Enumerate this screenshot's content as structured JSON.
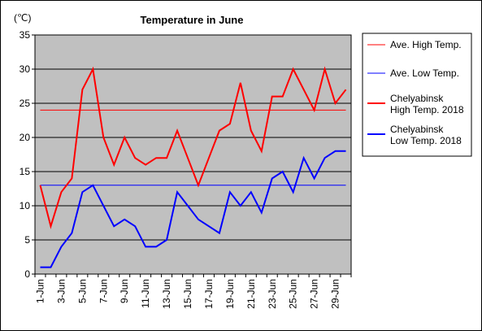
{
  "chart_data": {
    "type": "line",
    "title": "Temperature in June",
    "ylabel": "(℃)",
    "xlabel": "",
    "ylim": [
      0,
      35
    ],
    "yticks": [
      "0",
      "5",
      "10",
      "15",
      "20",
      "25",
      "30",
      "35"
    ],
    "x_tick_labels": [
      "1-Jun",
      "3-Jun",
      "5-Jun",
      "7-Jun",
      "9-Jun",
      "11-Jun",
      "13-Jun",
      "15-Jun",
      "17-Jun",
      "19-Jun",
      "21-Jun",
      "23-Jun",
      "25-Jun",
      "27-Jun",
      "29-Jun"
    ],
    "categories": [
      "1-Jun",
      "2-Jun",
      "3-Jun",
      "4-Jun",
      "5-Jun",
      "6-Jun",
      "7-Jun",
      "8-Jun",
      "9-Jun",
      "10-Jun",
      "11-Jun",
      "12-Jun",
      "13-Jun",
      "14-Jun",
      "15-Jun",
      "16-Jun",
      "17-Jun",
      "18-Jun",
      "19-Jun",
      "20-Jun",
      "21-Jun",
      "22-Jun",
      "23-Jun",
      "24-Jun",
      "25-Jun",
      "26-Jun",
      "27-Jun",
      "28-Jun",
      "29-Jun",
      "30-Jun"
    ],
    "grid": true,
    "legend_position": "right",
    "series": [
      {
        "name": "Ave. High Temp.",
        "name_lines": [
          "Ave. High Temp."
        ],
        "color": "#ff0000",
        "values": [
          24,
          24,
          24,
          24,
          24,
          24,
          24,
          24,
          24,
          24,
          24,
          24,
          24,
          24,
          24,
          24,
          24,
          24,
          24,
          24,
          24,
          24,
          24,
          24,
          24,
          24,
          24,
          24,
          24,
          24
        ]
      },
      {
        "name": "Ave. Low Temp.",
        "name_lines": [
          "Ave. Low Temp."
        ],
        "color": "#0000ff",
        "values": [
          13,
          13,
          13,
          13,
          13,
          13,
          13,
          13,
          13,
          13,
          13,
          13,
          13,
          13,
          13,
          13,
          13,
          13,
          13,
          13,
          13,
          13,
          13,
          13,
          13,
          13,
          13,
          13,
          13,
          13
        ]
      },
      {
        "name": "Chelyabinsk High Temp. 2018",
        "name_lines": [
          "Chelyabinsk",
          "High Temp. 2018"
        ],
        "color": "#ff0000",
        "values": [
          13,
          7,
          12,
          14,
          27,
          30,
          20,
          16,
          20,
          17,
          16,
          17,
          17,
          21,
          17,
          13,
          17,
          21,
          22,
          28,
          21,
          18,
          26,
          26,
          30,
          27,
          24,
          30,
          25,
          27
        ]
      },
      {
        "name": "Chelyabinsk Low Temp. 2018",
        "name_lines": [
          "Chelyabinsk",
          "Low Temp. 2018"
        ],
        "color": "#0000ff",
        "values": [
          1,
          1,
          4,
          6,
          12,
          13,
          10,
          7,
          8,
          7,
          4,
          4,
          5,
          12,
          10,
          8,
          7,
          6,
          12,
          10,
          12,
          9,
          14,
          15,
          12,
          17,
          14,
          17,
          18,
          18
        ]
      }
    ]
  }
}
